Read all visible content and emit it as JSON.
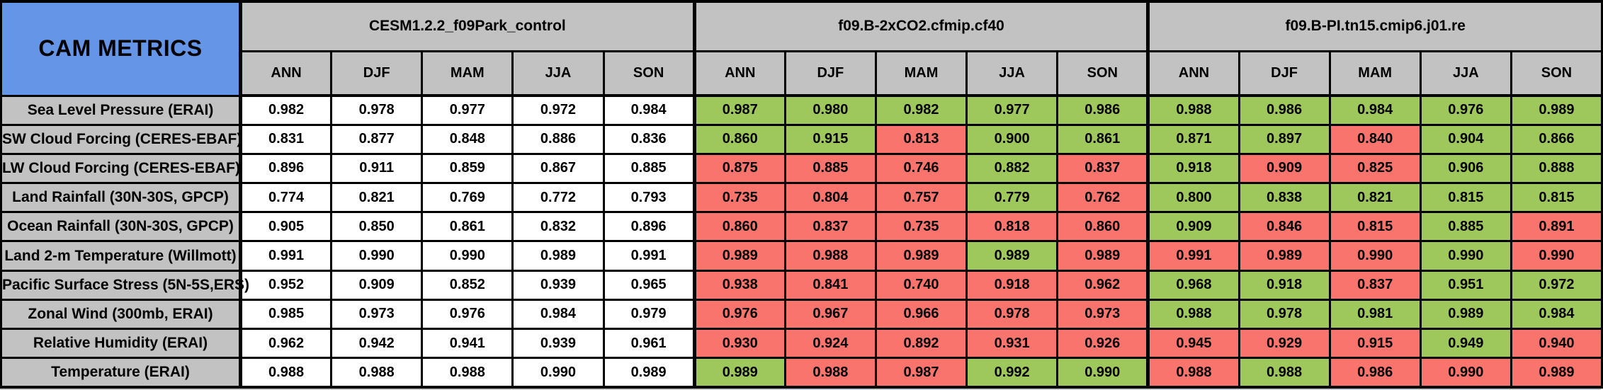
{
  "colors": {
    "title-bg": "#6495e6",
    "header-bg": "#c2c2c2",
    "good": "#9fc85c",
    "bad": "#f9746c",
    "neutral": "#ffffff",
    "border": "#000000",
    "text": "#000000"
  },
  "chart_data": {
    "type": "table",
    "title": "CAM METRICS",
    "models": [
      "CESM1.2.2_f09Park_control",
      "f09.B-2xCO2.cfmip.cf40",
      "f09.B-PI.tn15.cmip6.j01.re"
    ],
    "seasons": [
      "ANN",
      "DJF",
      "MAM",
      "JJA",
      "SON"
    ],
    "cell_color_codes": {
      "W": "#ffffff",
      "G": "#9fc85c",
      "R": "#f9746c"
    },
    "rows": [
      {
        "label": "Sea Level Pressure (ERAI)",
        "values": [
          [
            "0.982",
            "0.978",
            "0.977",
            "0.972",
            "0.984"
          ],
          [
            "0.987",
            "0.980",
            "0.982",
            "0.977",
            "0.986"
          ],
          [
            "0.988",
            "0.986",
            "0.984",
            "0.976",
            "0.989"
          ]
        ],
        "cell_colors": [
          [
            "W",
            "W",
            "W",
            "W",
            "W"
          ],
          [
            "G",
            "G",
            "G",
            "G",
            "G"
          ],
          [
            "G",
            "G",
            "G",
            "G",
            "G"
          ]
        ]
      },
      {
        "label": "SW Cloud Forcing (CERES-EBAF)",
        "values": [
          [
            "0.831",
            "0.877",
            "0.848",
            "0.886",
            "0.836"
          ],
          [
            "0.860",
            "0.915",
            "0.813",
            "0.900",
            "0.861"
          ],
          [
            "0.871",
            "0.897",
            "0.840",
            "0.904",
            "0.866"
          ]
        ],
        "cell_colors": [
          [
            "W",
            "W",
            "W",
            "W",
            "W"
          ],
          [
            "G",
            "G",
            "R",
            "G",
            "G"
          ],
          [
            "G",
            "G",
            "R",
            "G",
            "G"
          ]
        ]
      },
      {
        "label": "LW Cloud Forcing (CERES-EBAF)",
        "values": [
          [
            "0.896",
            "0.911",
            "0.859",
            "0.867",
            "0.885"
          ],
          [
            "0.875",
            "0.885",
            "0.746",
            "0.882",
            "0.837"
          ],
          [
            "0.918",
            "0.909",
            "0.825",
            "0.906",
            "0.888"
          ]
        ],
        "cell_colors": [
          [
            "W",
            "W",
            "W",
            "W",
            "W"
          ],
          [
            "R",
            "R",
            "R",
            "G",
            "R"
          ],
          [
            "G",
            "R",
            "R",
            "G",
            "G"
          ]
        ]
      },
      {
        "label": "Land Rainfall (30N-30S, GPCP)",
        "values": [
          [
            "0.774",
            "0.821",
            "0.769",
            "0.772",
            "0.793"
          ],
          [
            "0.735",
            "0.804",
            "0.757",
            "0.779",
            "0.762"
          ],
          [
            "0.800",
            "0.838",
            "0.821",
            "0.815",
            "0.815"
          ]
        ],
        "cell_colors": [
          [
            "W",
            "W",
            "W",
            "W",
            "W"
          ],
          [
            "R",
            "R",
            "R",
            "G",
            "R"
          ],
          [
            "G",
            "G",
            "G",
            "G",
            "G"
          ]
        ]
      },
      {
        "label": "Ocean Rainfall (30N-30S, GPCP)",
        "values": [
          [
            "0.905",
            "0.850",
            "0.861",
            "0.832",
            "0.896"
          ],
          [
            "0.860",
            "0.837",
            "0.735",
            "0.818",
            "0.860"
          ],
          [
            "0.909",
            "0.846",
            "0.815",
            "0.885",
            "0.891"
          ]
        ],
        "cell_colors": [
          [
            "W",
            "W",
            "W",
            "W",
            "W"
          ],
          [
            "R",
            "R",
            "R",
            "R",
            "R"
          ],
          [
            "G",
            "R",
            "R",
            "G",
            "R"
          ]
        ]
      },
      {
        "label": "Land 2-m Temperature (Willmott)",
        "values": [
          [
            "0.991",
            "0.990",
            "0.990",
            "0.989",
            "0.991"
          ],
          [
            "0.989",
            "0.988",
            "0.989",
            "0.989",
            "0.989"
          ],
          [
            "0.991",
            "0.989",
            "0.990",
            "0.990",
            "0.990"
          ]
        ],
        "cell_colors": [
          [
            "W",
            "W",
            "W",
            "W",
            "W"
          ],
          [
            "R",
            "R",
            "R",
            "G",
            "R"
          ],
          [
            "R",
            "R",
            "R",
            "G",
            "R"
          ]
        ]
      },
      {
        "label": "Pacific Surface Stress (5N-5S,ERS)",
        "values": [
          [
            "0.952",
            "0.909",
            "0.852",
            "0.939",
            "0.965"
          ],
          [
            "0.938",
            "0.841",
            "0.740",
            "0.918",
            "0.962"
          ],
          [
            "0.968",
            "0.918",
            "0.837",
            "0.951",
            "0.972"
          ]
        ],
        "cell_colors": [
          [
            "W",
            "W",
            "W",
            "W",
            "W"
          ],
          [
            "R",
            "R",
            "R",
            "R",
            "R"
          ],
          [
            "G",
            "G",
            "R",
            "G",
            "G"
          ]
        ]
      },
      {
        "label": "Zonal Wind (300mb, ERAI)",
        "values": [
          [
            "0.985",
            "0.973",
            "0.976",
            "0.984",
            "0.979"
          ],
          [
            "0.976",
            "0.967",
            "0.966",
            "0.978",
            "0.973"
          ],
          [
            "0.988",
            "0.978",
            "0.981",
            "0.989",
            "0.984"
          ]
        ],
        "cell_colors": [
          [
            "W",
            "W",
            "W",
            "W",
            "W"
          ],
          [
            "R",
            "R",
            "R",
            "R",
            "R"
          ],
          [
            "G",
            "G",
            "G",
            "G",
            "G"
          ]
        ]
      },
      {
        "label": "Relative Humidity (ERAI)",
        "values": [
          [
            "0.962",
            "0.942",
            "0.941",
            "0.939",
            "0.961"
          ],
          [
            "0.930",
            "0.924",
            "0.892",
            "0.931",
            "0.926"
          ],
          [
            "0.945",
            "0.929",
            "0.915",
            "0.949",
            "0.940"
          ]
        ],
        "cell_colors": [
          [
            "W",
            "W",
            "W",
            "W",
            "W"
          ],
          [
            "R",
            "R",
            "R",
            "R",
            "R"
          ],
          [
            "R",
            "R",
            "R",
            "G",
            "R"
          ]
        ]
      },
      {
        "label": "Temperature (ERAI)",
        "values": [
          [
            "0.988",
            "0.988",
            "0.988",
            "0.990",
            "0.989"
          ],
          [
            "0.989",
            "0.988",
            "0.987",
            "0.992",
            "0.990"
          ],
          [
            "0.988",
            "0.988",
            "0.986",
            "0.990",
            "0.989"
          ]
        ],
        "cell_colors": [
          [
            "W",
            "W",
            "W",
            "W",
            "W"
          ],
          [
            "G",
            "R",
            "R",
            "G",
            "G"
          ],
          [
            "R",
            "G",
            "R",
            "R",
            "R"
          ]
        ]
      }
    ]
  }
}
